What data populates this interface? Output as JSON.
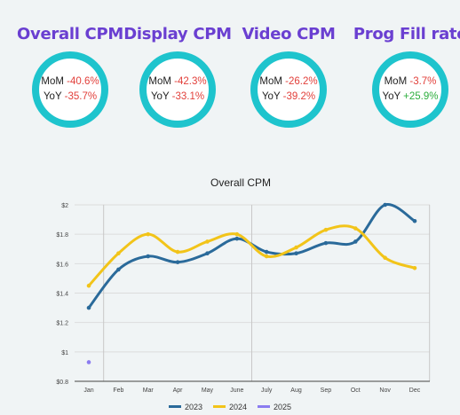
{
  "kpis": [
    {
      "title": "Overall CPM",
      "mom_label": "MoM",
      "mom": "-40.6%",
      "mom_dir": "neg",
      "yoy_label": "YoY",
      "yoy": "-35.7%",
      "yoy_dir": "neg"
    },
    {
      "title": "Display CPM",
      "mom_label": "MoM",
      "mom": "-42.3%",
      "mom_dir": "neg",
      "yoy_label": "YoY",
      "yoy": "-33.1%",
      "yoy_dir": "neg"
    },
    {
      "title": "Video CPM",
      "mom_label": "MoM",
      "mom": "-26.2%",
      "mom_dir": "neg",
      "yoy_label": "YoY",
      "yoy": "-39.2%",
      "yoy_dir": "neg"
    },
    {
      "title": "Prog Fill rate",
      "mom_label": "MoM",
      "mom": "-3.7%",
      "mom_dir": "neg",
      "yoy_label": "YoY",
      "yoy": "+25.9%",
      "yoy_dir": "pos"
    }
  ],
  "colors": {
    "title": "#6a3fd1",
    "ring": "#1ec4cd",
    "negative": "#e2403b",
    "positive": "#2dae3e"
  },
  "chart_data": {
    "type": "line",
    "title": "Overall CPM",
    "categories": [
      "Jan",
      "Feb",
      "Mar",
      "Apr",
      "May",
      "June",
      "July",
      "Aug",
      "Sep",
      "Oct",
      "Nov",
      "Dec"
    ],
    "ylim": [
      0.8,
      2.0
    ],
    "yticks": [
      0.8,
      1.0,
      1.2,
      1.4,
      1.6,
      1.8,
      2.0
    ],
    "ytick_labels": [
      "$0.8",
      "$1",
      "$1.2",
      "$1.4",
      "$1.6",
      "$1.8",
      "$2"
    ],
    "grid": true,
    "legend_position": "bottom",
    "series": [
      {
        "name": "2023",
        "color": "#2a6a9a",
        "values": [
          1.3,
          1.56,
          1.65,
          1.61,
          1.67,
          1.77,
          1.68,
          1.67,
          1.74,
          1.75,
          2.0,
          1.89
        ]
      },
      {
        "name": "2024",
        "color": "#f2c419",
        "values": [
          1.45,
          1.67,
          1.8,
          1.68,
          1.75,
          1.8,
          1.65,
          1.71,
          1.83,
          1.84,
          1.64,
          1.57
        ]
      },
      {
        "name": "2025",
        "color": "#8b7cf0",
        "values": [
          0.93,
          null,
          null,
          null,
          null,
          null,
          null,
          null,
          null,
          null,
          null,
          null
        ]
      }
    ]
  }
}
